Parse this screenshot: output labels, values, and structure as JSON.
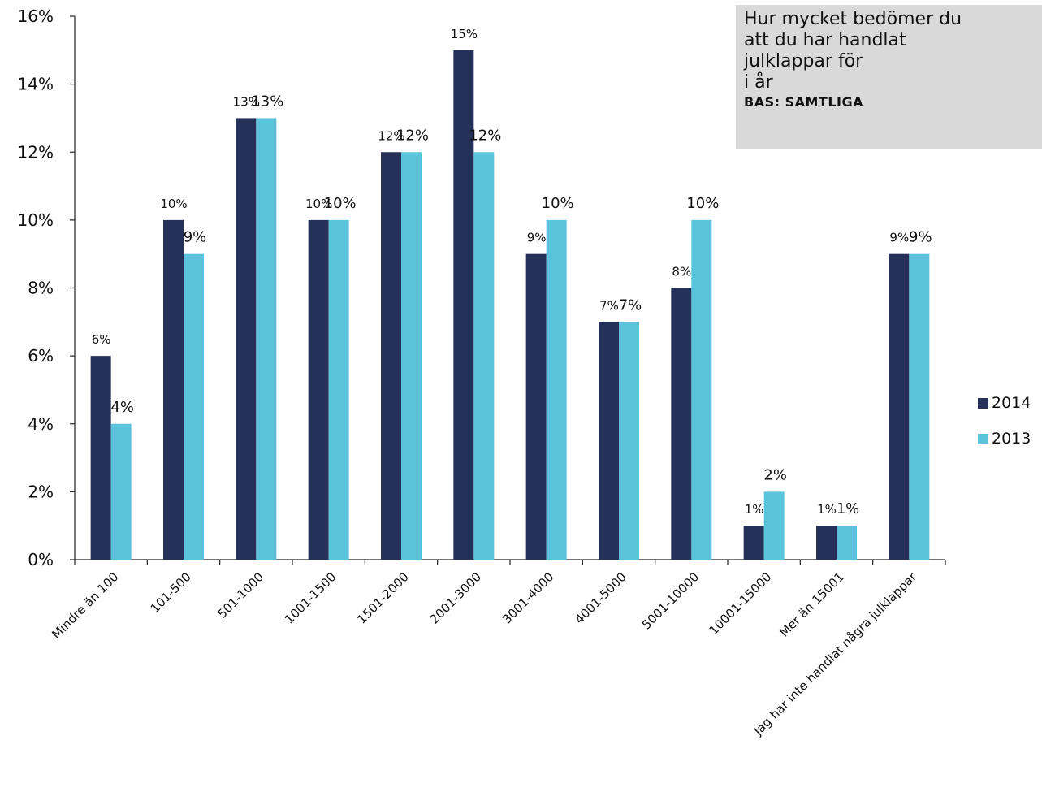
{
  "chart_data": {
    "type": "bar",
    "categories": [
      "Mindre än 100",
      "101-500",
      "501-1000",
      "1001-1500",
      "1501-2000",
      "2001-3000",
      "3001-4000",
      "4001-5000",
      "5001-10000",
      "10001-15000",
      "Mer än 15001",
      "Jag har inte handlat några julklappar"
    ],
    "series": [
      {
        "name": "2014",
        "color": "#263159",
        "values": [
          6,
          10,
          13,
          10,
          12,
          15,
          9,
          7,
          8,
          1,
          1,
          9
        ],
        "labels": [
          "6%",
          "10%",
          "13%",
          "10%",
          "12%",
          "15%",
          "9%",
          "7%",
          "8%",
          "1%",
          "1%",
          "9%"
        ]
      },
      {
        "name": "2013",
        "color": "#5bc4dc",
        "values": [
          4,
          9,
          13,
          10,
          12,
          12,
          10,
          7,
          10,
          2,
          1,
          9
        ],
        "labels": [
          "4%",
          "9%",
          "13%",
          "10%",
          "12%",
          "12%",
          "10%",
          "7%",
          "10%",
          "2%",
          "1%",
          "9%"
        ]
      }
    ],
    "ylim": [
      0,
      16
    ],
    "yticks": [
      "0%",
      "2%",
      "4%",
      "6%",
      "8%",
      "10%",
      "12%",
      "14%",
      "16%"
    ],
    "grid": false,
    "legend_position": "right"
  },
  "title_box": {
    "lines": [
      "Hur mycket bedömer du",
      "att du har handlat",
      "julklappar för",
      "i år"
    ],
    "base": "BAS: SAMTLIGA"
  }
}
